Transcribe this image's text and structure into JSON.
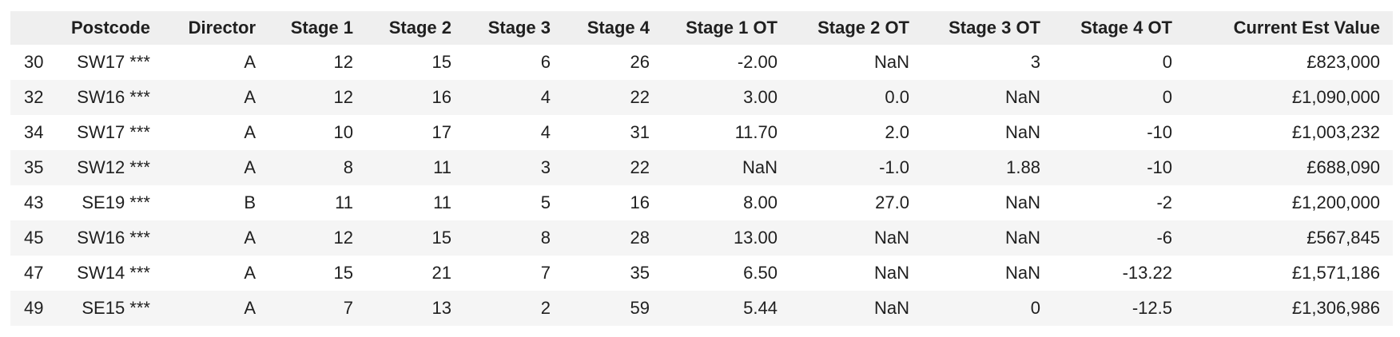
{
  "table": {
    "columns": [
      "",
      "Postcode",
      "Director",
      "Stage 1",
      "Stage 2",
      "Stage 3",
      "Stage 4",
      "Stage 1 OT",
      "Stage 2 OT",
      "Stage 3 OT",
      "Stage 4 OT",
      "Current Est Value"
    ],
    "rows": [
      [
        "30",
        "SW17 ***",
        "A",
        "12",
        "15",
        "6",
        "26",
        "-2.00",
        "NaN",
        "3",
        "0",
        "£823,000"
      ],
      [
        "32",
        "SW16 ***",
        "A",
        "12",
        "16",
        "4",
        "22",
        "3.00",
        "0.0",
        "NaN",
        "0",
        "£1,090,000"
      ],
      [
        "34",
        "SW17 ***",
        "A",
        "10",
        "17",
        "4",
        "31",
        "11.70",
        "2.0",
        "NaN",
        "-10",
        "£1,003,232"
      ],
      [
        "35",
        "SW12 ***",
        "A",
        "8",
        "11",
        "3",
        "22",
        "NaN",
        "-1.0",
        "1.88",
        "-10",
        "£688,090"
      ],
      [
        "43",
        "SE19 ***",
        "B",
        "11",
        "11",
        "5",
        "16",
        "8.00",
        "27.0",
        "NaN",
        "-2",
        "£1,200,000"
      ],
      [
        "45",
        "SW16 ***",
        "A",
        "12",
        "15",
        "8",
        "28",
        "13.00",
        "NaN",
        "NaN",
        "-6",
        "£567,845"
      ],
      [
        "47",
        "SW14 ***",
        "A",
        "15",
        "21",
        "7",
        "35",
        "6.50",
        "NaN",
        "NaN",
        "-13.22",
        "£1,571,186"
      ],
      [
        "49",
        "SE15 ***",
        "A",
        "7",
        "13",
        "2",
        "59",
        "5.44",
        "NaN",
        "0",
        "-12.5",
        "£1,306,986"
      ]
    ]
  }
}
